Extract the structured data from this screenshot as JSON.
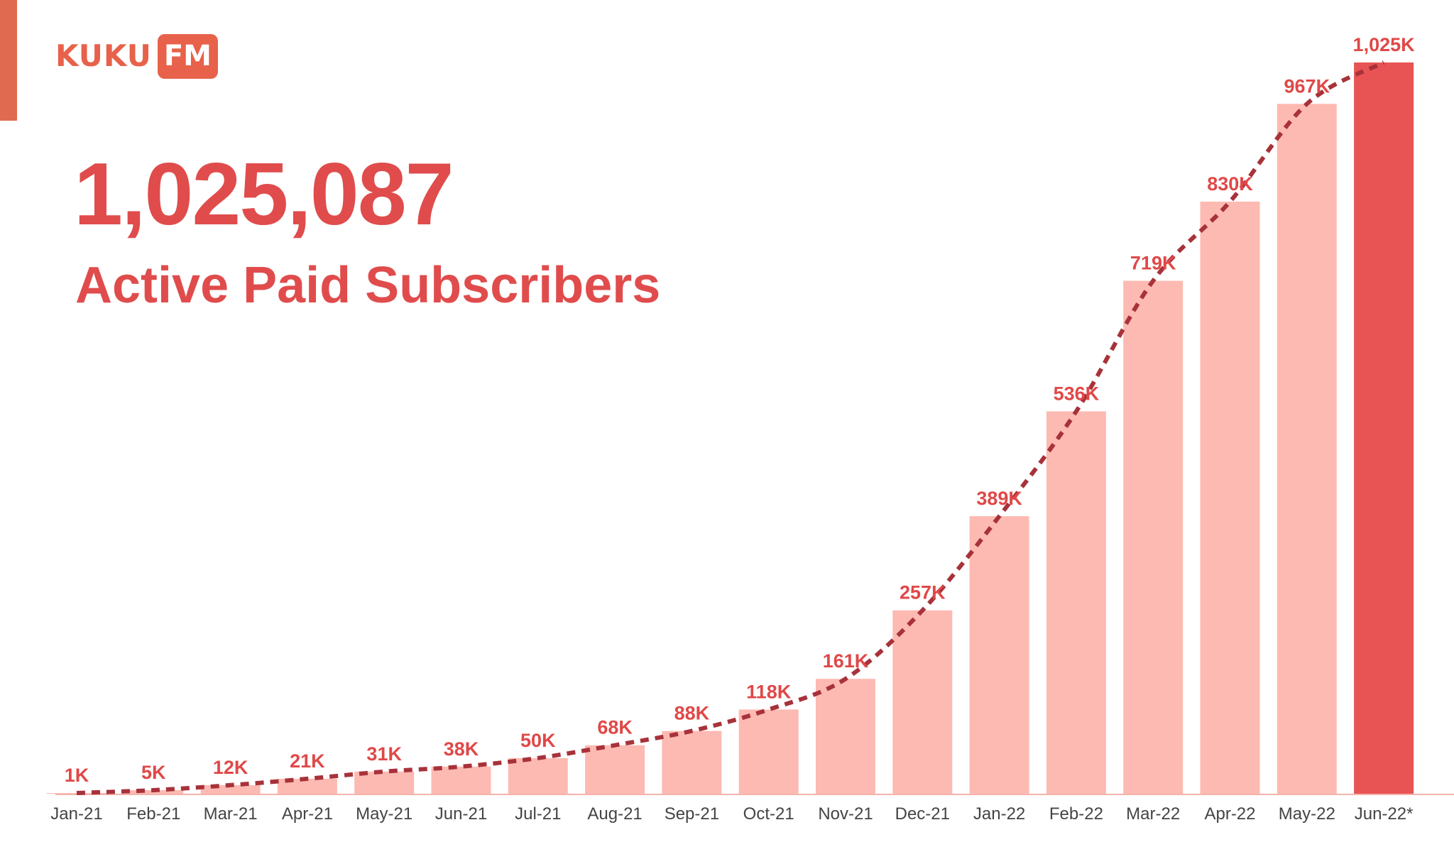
{
  "brand": {
    "logo_text": "KUKU",
    "logo_box_text": "FM",
    "color": "#e8614a"
  },
  "headline": {
    "value": "1,025,087",
    "label": "Active Paid Subscribers",
    "color": "#e04c4c"
  },
  "chart_data": {
    "type": "bar",
    "title": "",
    "xlabel": "",
    "ylabel": "",
    "categories": [
      "Jan-21",
      "Feb-21",
      "Mar-21",
      "Apr-21",
      "May-21",
      "Jun-21",
      "Jul-21",
      "Aug-21",
      "Sep-21",
      "Oct-21",
      "Nov-21",
      "Dec-21",
      "Jan-22",
      "Feb-22",
      "Mar-22",
      "Apr-22",
      "May-22",
      "Jun-22*"
    ],
    "values": [
      1,
      5,
      12,
      21,
      31,
      38,
      50,
      68,
      88,
      118,
      161,
      257,
      389,
      536,
      719,
      830,
      967,
      1025
    ],
    "value_labels": [
      "1K",
      "5K",
      "12K",
      "21K",
      "31K",
      "38K",
      "50K",
      "68K",
      "88K",
      "118K",
      "161K",
      "257K",
      "389K",
      "536K",
      "719K",
      "830K",
      "967K",
      "1,025K"
    ],
    "unit": "K",
    "ylim": [
      0,
      1025
    ],
    "grid": false,
    "trendline": "dashed",
    "colors": {
      "bar": "#fdbab2",
      "highlight_bar": "#e85454",
      "label": "#e04848",
      "trend": "#a8323a",
      "baseline": "#f3b4aa",
      "tick_label": "#444444"
    },
    "highlight_index": 17
  }
}
